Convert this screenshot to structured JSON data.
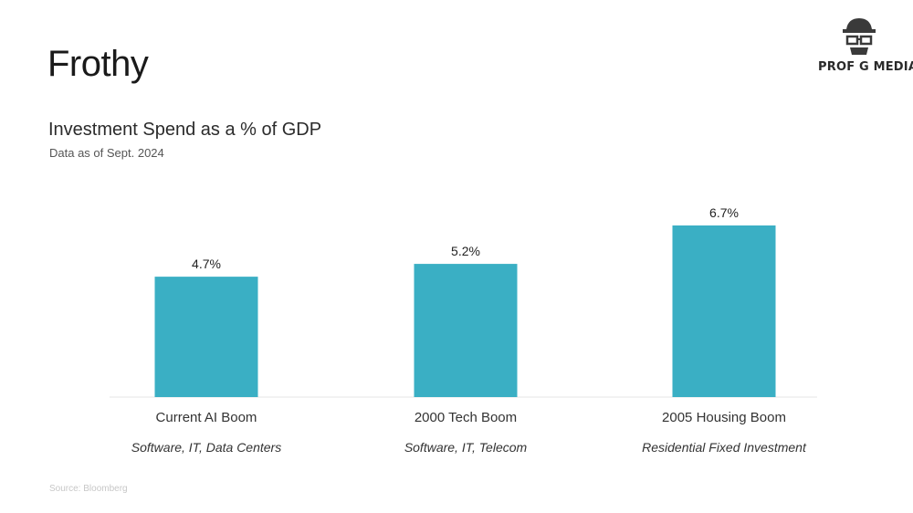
{
  "slide": {
    "title": "Frothy",
    "logo_text": "PROF G MEDIA",
    "source": "Source: Bloomberg"
  },
  "chart_data": {
    "type": "bar",
    "title": "Investment Spend as a % of GDP",
    "subtitle": "Data as of Sept. 2024",
    "categories": [
      "Current AI Boom",
      "2000 Tech Boom",
      "2005 Housing Boom"
    ],
    "category_sublabels": [
      "Software, IT, Data Centers",
      "Software, IT, Telecom",
      "Residential Fixed Investment"
    ],
    "values": [
      4.7,
      5.2,
      6.7
    ],
    "value_labels": [
      "4.7%",
      "5.2%",
      "6.7%"
    ],
    "ylim": [
      0,
      6.7
    ],
    "grid": false,
    "legend": "none",
    "bar_color": "#3aafc4"
  }
}
